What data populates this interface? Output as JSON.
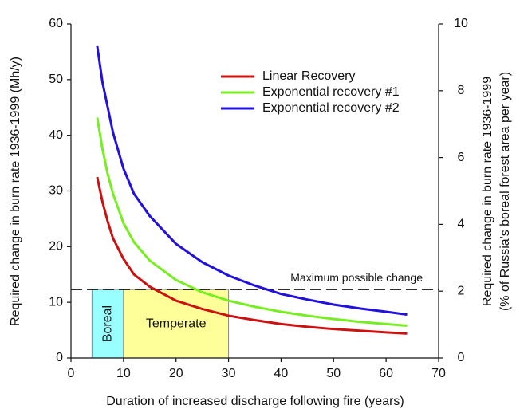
{
  "chart_data": {
    "type": "line",
    "xlabel": "Duration of increased discharge following fire (years)",
    "ylabel": "Required change in burn rate 1936-1999 (Mh/y)",
    "y2label": [
      "Required change in burn rate 1936-1999",
      "(% of Russia's boreal forest area per year)"
    ],
    "x": [
      5,
      6,
      7,
      8,
      10,
      12,
      15,
      20,
      25,
      30,
      35,
      40,
      45,
      50,
      55,
      60,
      64
    ],
    "series": [
      {
        "name": "Linear Recovery",
        "color": "#cc1111",
        "values": [
          32.5,
          28,
          24.5,
          21.5,
          17.8,
          15,
          12.8,
          10.3,
          8.8,
          7.6,
          6.8,
          6.1,
          5.6,
          5.2,
          4.9,
          4.6,
          4.4
        ]
      },
      {
        "name": "Exponential recovery #1",
        "color": "#77ee22",
        "values": [
          43.2,
          37.5,
          33,
          29.5,
          24.2,
          20.8,
          17.5,
          14,
          11.8,
          10.3,
          9.2,
          8.3,
          7.6,
          7,
          6.5,
          6.1,
          5.8
        ]
      },
      {
        "name": "Exponential recovery #2",
        "color": "#2211dd",
        "values": [
          56,
          49.5,
          45,
          40.5,
          34,
          29.5,
          25.5,
          20.5,
          17.2,
          14.8,
          13,
          11.5,
          10.5,
          9.6,
          8.9,
          8.3,
          7.8
        ]
      }
    ],
    "threshold": {
      "value": 12.3,
      "label": "Maximum possible change"
    },
    "regions": [
      {
        "label": "Boreal",
        "x": [
          4,
          10
        ],
        "color": "#99ffff"
      },
      {
        "label": "Temperate",
        "x": [
          10,
          30
        ],
        "color": "#ffff99"
      }
    ],
    "xlim": [
      0,
      70
    ],
    "xticks": [
      0,
      10,
      20,
      30,
      40,
      50,
      60,
      70
    ],
    "ylim": [
      0,
      60
    ],
    "yticks": [
      0,
      10,
      20,
      30,
      40,
      50,
      60
    ],
    "y2lim": [
      0,
      10
    ],
    "y2ticks": [
      0,
      2,
      4,
      6,
      8,
      10
    ],
    "legend": "upper right"
  }
}
